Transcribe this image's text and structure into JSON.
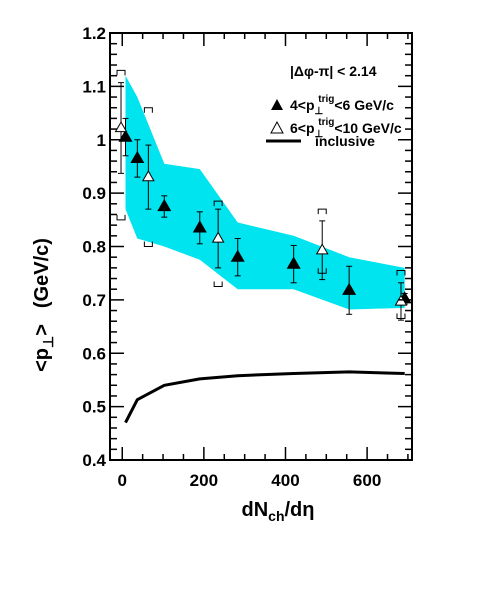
{
  "chart_data": {
    "type": "scatter",
    "title": "",
    "xlabel": {
      "main": "dN",
      "sub": "ch",
      "tail": "/dη"
    },
    "ylabel": {
      "open": "<p",
      "sub": "⊥",
      "close": ">",
      "unit": "(GeV/c)"
    },
    "xlim": [
      -30,
      710
    ],
    "ylim": [
      0.4,
      1.2
    ],
    "x_ticks": [
      0,
      200,
      400,
      600
    ],
    "y_ticks": [
      0.4,
      0.5,
      0.6,
      0.7,
      0.8,
      0.9,
      1.0,
      1.1,
      1.2
    ],
    "y_tick_labels": [
      "0.4",
      "0.5",
      "0.6",
      "0.7",
      "0.8",
      "0.9",
      "1",
      "1.1",
      "1.2"
    ],
    "grid": false,
    "legend_position": "top-right",
    "legend": {
      "cut_label": "|Δφ-π| < 2.14",
      "entries": [
        {
          "marker": "filled-triangle",
          "pre": "4<p",
          "sub": "⊥",
          "sup": "trig",
          "post": "<6 GeV/c"
        },
        {
          "marker": "open-triangle",
          "pre": "6<p",
          "sub": "⊥",
          "sup": "trig",
          "post": "<10 GeV/c"
        },
        {
          "marker": "line",
          "label": "inclusive"
        }
      ]
    },
    "series": [
      {
        "name": "4<p_T^trig<6 GeV/c",
        "marker": "filled-triangle",
        "color": "#000000",
        "points": [
          {
            "x": 8,
            "y": 1.005,
            "err": 0.035
          },
          {
            "x": 37,
            "y": 0.965,
            "err": 0.035
          },
          {
            "x": 103,
            "y": 0.875,
            "err": 0.02
          },
          {
            "x": 190,
            "y": 0.835,
            "err": 0.03
          },
          {
            "x": 283,
            "y": 0.78,
            "err": 0.035
          },
          {
            "x": 420,
            "y": 0.767,
            "err": 0.035
          },
          {
            "x": 556,
            "y": 0.718,
            "err": 0.045
          },
          {
            "x": 692,
            "y": 0.702,
            "err": 0.01
          }
        ]
      },
      {
        "name": "6<p_T^trig<10 GeV/c",
        "marker": "open-triangle",
        "color": "#000000",
        "points": [
          {
            "x": -3,
            "y": 1.022,
            "err": 0.085,
            "sys_high": 1.13,
            "sys_low": 0.85
          },
          {
            "x": 64,
            "y": 0.93,
            "err": 0.06,
            "sys_high": 1.06,
            "sys_low": 0.8
          },
          {
            "x": 235,
            "y": 0.815,
            "err": 0.055,
            "sys_high": 0.885,
            "sys_low": 0.725
          },
          {
            "x": 490,
            "y": 0.793,
            "err": 0.055,
            "sys_high": 0.87,
            "sys_low": 0.75
          },
          {
            "x": 683,
            "y": 0.697,
            "err": 0.035,
            "sys_high": 0.755,
            "sys_low": 0.665
          }
        ]
      },
      {
        "name": "inclusive",
        "type": "line",
        "color": "#000000",
        "points": [
          {
            "x": 8,
            "y": 0.47
          },
          {
            "x": 37,
            "y": 0.513
          },
          {
            "x": 103,
            "y": 0.54
          },
          {
            "x": 190,
            "y": 0.552
          },
          {
            "x": 283,
            "y": 0.558
          },
          {
            "x": 420,
            "y": 0.562
          },
          {
            "x": 556,
            "y": 0.565
          },
          {
            "x": 692,
            "y": 0.562
          }
        ]
      }
    ],
    "band": {
      "description": "systematic band for 4<p_T^trig<6",
      "color": "#00e4ef",
      "upper": [
        {
          "x": 8,
          "y": 1.12
        },
        {
          "x": 37,
          "y": 1.08
        },
        {
          "x": 103,
          "y": 0.955
        },
        {
          "x": 190,
          "y": 0.945
        },
        {
          "x": 283,
          "y": 0.845
        },
        {
          "x": 420,
          "y": 0.82
        },
        {
          "x": 556,
          "y": 0.78
        },
        {
          "x": 692,
          "y": 0.76
        }
      ],
      "lower": [
        {
          "x": 8,
          "y": 0.87
        },
        {
          "x": 37,
          "y": 0.815
        },
        {
          "x": 103,
          "y": 0.8
        },
        {
          "x": 190,
          "y": 0.775
        },
        {
          "x": 283,
          "y": 0.72
        },
        {
          "x": 420,
          "y": 0.72
        },
        {
          "x": 556,
          "y": 0.682
        },
        {
          "x": 692,
          "y": 0.685
        }
      ]
    }
  }
}
